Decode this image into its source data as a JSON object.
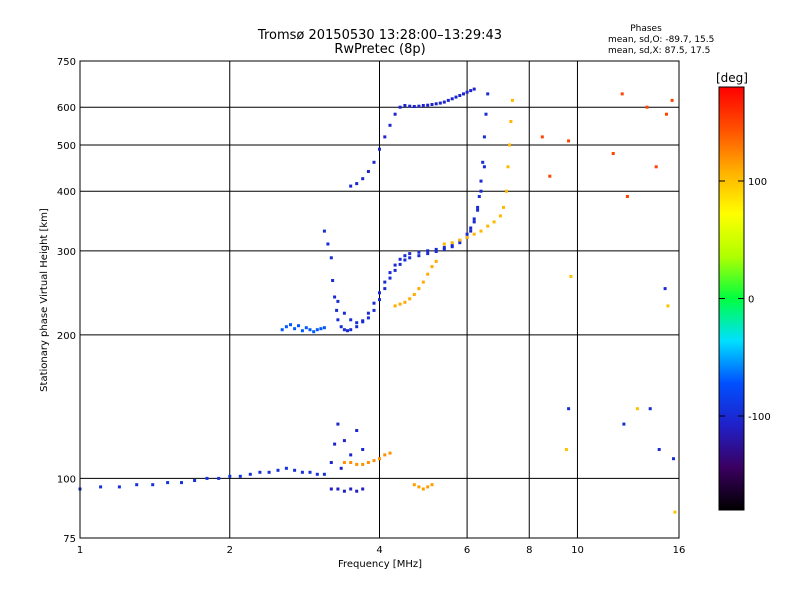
{
  "chart_data": {
    "type": "scatter",
    "title": "Tromsø 20150530 13:28:00–13:29:43",
    "subtitle": "RwPretec (8p)",
    "xlabel": "Frequency [MHz]",
    "ylabel": "Stationary phase Virtual Height [km]",
    "x_scale": "log",
    "y_scale": "log",
    "xlim": [
      1,
      16
    ],
    "ylim": [
      75,
      750
    ],
    "x_ticks": [
      1,
      2,
      4,
      6,
      8,
      10,
      16
    ],
    "x_tick_labels": [
      "1",
      "2",
      "4",
      "6",
      "8",
      "10",
      "16"
    ],
    "y_ticks": [
      75,
      100,
      200,
      300,
      400,
      500,
      600,
      750
    ],
    "y_tick_labels": [
      "75",
      "100",
      "200",
      "300",
      "400",
      "500",
      "600",
      "750"
    ],
    "grid": true,
    "stats_box": {
      "title": "Phases",
      "line1": "mean, sd,O: -89.7, 15.5",
      "line2": "mean, sd,X:  87.5, 17.5"
    },
    "colorbar": {
      "label": "[deg]",
      "range": [
        -180,
        180
      ],
      "ticks": [
        100,
        0,
        -100
      ],
      "tick_labels": [
        "100",
        "0",
        "-100"
      ],
      "colormap": [
        "#000000",
        "#3a0060",
        "#2020c8",
        "#0050ff",
        "#00e0ff",
        "#00ff40",
        "#b0ff00",
        "#ffff00",
        "#ffb000",
        "#ff5000",
        "#ff0000"
      ]
    },
    "series": [
      {
        "traces": [
          {
            "x": [
              1.0,
              1.1,
              1.2,
              1.3,
              1.4,
              1.5,
              1.6,
              1.7,
              1.8,
              1.9,
              2.0,
              2.1,
              2.2,
              2.3,
              2.4,
              2.5,
              2.6,
              2.7,
              2.8,
              2.9,
              3.0,
              3.1
            ],
            "y": [
              95,
              96,
              96,
              97,
              97,
              98,
              98,
              99,
              100,
              100,
              101,
              101,
              102,
              103,
              103,
              104,
              105,
              104,
              103,
              103,
              102,
              102
            ],
            "phase": -95
          },
          {
            "x": [
              3.1,
              3.15,
              3.2,
              3.22,
              3.25,
              3.28,
              3.3,
              3.35,
              3.4,
              3.45,
              3.5,
              3.6,
              3.7,
              3.8,
              3.9,
              4.0,
              4.1,
              4.2,
              4.3,
              4.4,
              4.5,
              4.6,
              4.8,
              5.0,
              5.2,
              5.4,
              5.6,
              5.8,
              6.0,
              6.1,
              6.2,
              6.3,
              6.35,
              6.4,
              6.45,
              6.5,
              6.55,
              6.6
            ],
            "y": [
              330,
              310,
              290,
              260,
              240,
              225,
              215,
              208,
              205,
              204,
              205,
              208,
              214,
              222,
              233,
              245,
              258,
              270,
              280,
              288,
              293,
              296,
              298,
              300,
              302,
              305,
              308,
              315,
              325,
              335,
              350,
              370,
              390,
              420,
              460,
              520,
              580,
              640
            ],
            "phase": -100
          },
          {
            "x": [
              3.3,
              3.4,
              3.5,
              3.6,
              3.7,
              3.8,
              3.9,
              4.0,
              4.1,
              4.2,
              4.3,
              4.4,
              4.5,
              4.6,
              4.8,
              5.0,
              5.2,
              5.4,
              5.6,
              5.8,
              6.0,
              6.1,
              6.2,
              6.3,
              6.4,
              6.5
            ],
            "y": [
              235,
              222,
              215,
              212,
              213,
              217,
              225,
              237,
              250,
              263,
              273,
              281,
              287,
              290,
              293,
              296,
              299,
              302,
              306,
              312,
              320,
              330,
              345,
              365,
              400,
              450
            ],
            "phase": -100
          },
          {
            "x": [
              3.5,
              3.6,
              3.7,
              3.8,
              3.9,
              4.0,
              4.1,
              4.2,
              4.3,
              4.4,
              4.5,
              4.6,
              4.7,
              4.8,
              4.9,
              5.0,
              5.1,
              5.2,
              5.3,
              5.4,
              5.5,
              5.6,
              5.7,
              5.8,
              5.9,
              6.0,
              6.1,
              6.2
            ],
            "y": [
              410,
              415,
              425,
              440,
              460,
              490,
              520,
              550,
              580,
              600,
              605,
              603,
              602,
              603,
              605,
              606,
              608,
              610,
              612,
              615,
              620,
              625,
              630,
              635,
              640,
              645,
              650,
              655
            ],
            "phase": -105
          },
          {
            "x": [
              2.55,
              2.6,
              2.65,
              2.7,
              2.75,
              2.8,
              2.85,
              2.9,
              2.95,
              3.0,
              3.05,
              3.1
            ],
            "y": [
              205,
              208,
              210,
              206,
              209,
              204,
              207,
              205,
              203,
              205,
              206,
              207
            ],
            "phase": -70
          },
          {
            "x": [
              3.2,
              3.3,
              3.4,
              3.5,
              3.6,
              3.7
            ],
            "y": [
              95,
              95,
              94,
              95,
              94,
              95
            ],
            "phase": -110
          },
          {
            "x": [
              3.2,
              3.25,
              3.3,
              3.35,
              3.4,
              3.5,
              3.6,
              3.7
            ],
            "y": [
              108,
              118,
              130,
              105,
              120,
              112,
              126,
              115
            ],
            "phase": -105
          },
          {
            "x": [
              3.4,
              3.5,
              3.6,
              3.7,
              3.8,
              3.9,
              4.0,
              4.1,
              4.2
            ],
            "y": [
              108,
              108,
              107,
              107,
              108,
              109,
              110,
              112,
              113
            ],
            "phase": 120
          },
          {
            "x": [
              4.3,
              4.4,
              4.5,
              4.6,
              4.7,
              4.8,
              4.9,
              5.0,
              5.1,
              5.2
            ],
            "y": [
              230,
              232,
              234,
              238,
              243,
              250,
              258,
              268,
              278,
              285
            ],
            "phase": 110
          },
          {
            "x": [
              5.4,
              5.6,
              5.8,
              6.0,
              6.2,
              6.4,
              6.6,
              6.8,
              7.0,
              7.1,
              7.2,
              7.25,
              7.3,
              7.35,
              7.4
            ],
            "y": [
              310,
              312,
              316,
              320,
              325,
              330,
              338,
              345,
              355,
              370,
              400,
              450,
              500,
              560,
              620
            ],
            "phase": 105
          },
          {
            "x": [
              4.7,
              4.8,
              4.9,
              5.0,
              5.1
            ],
            "y": [
              97,
              96,
              95,
              96,
              97
            ],
            "phase": 115
          },
          {
            "x": [
              8.5,
              8.8,
              9.6,
              11.8,
              12.3,
              12.6,
              13.8,
              14.4,
              15.1,
              15.5
            ],
            "y": [
              520,
              430,
              510,
              480,
              640,
              390,
              600,
              450,
              580,
              620
            ],
            "phase": 150
          },
          {
            "x": [
              9.6,
              12.4,
              14.0,
              14.6,
              15.0,
              15.6
            ],
            "y": [
              140,
              130,
              140,
              115,
              250,
              110
            ],
            "phase": -100
          },
          {
            "x": [
              9.7,
              9.5,
              13.2,
              15.2,
              15.7
            ],
            "y": [
              265,
              115,
              140,
              230,
              85
            ],
            "phase": 100
          }
        ]
      }
    ]
  }
}
